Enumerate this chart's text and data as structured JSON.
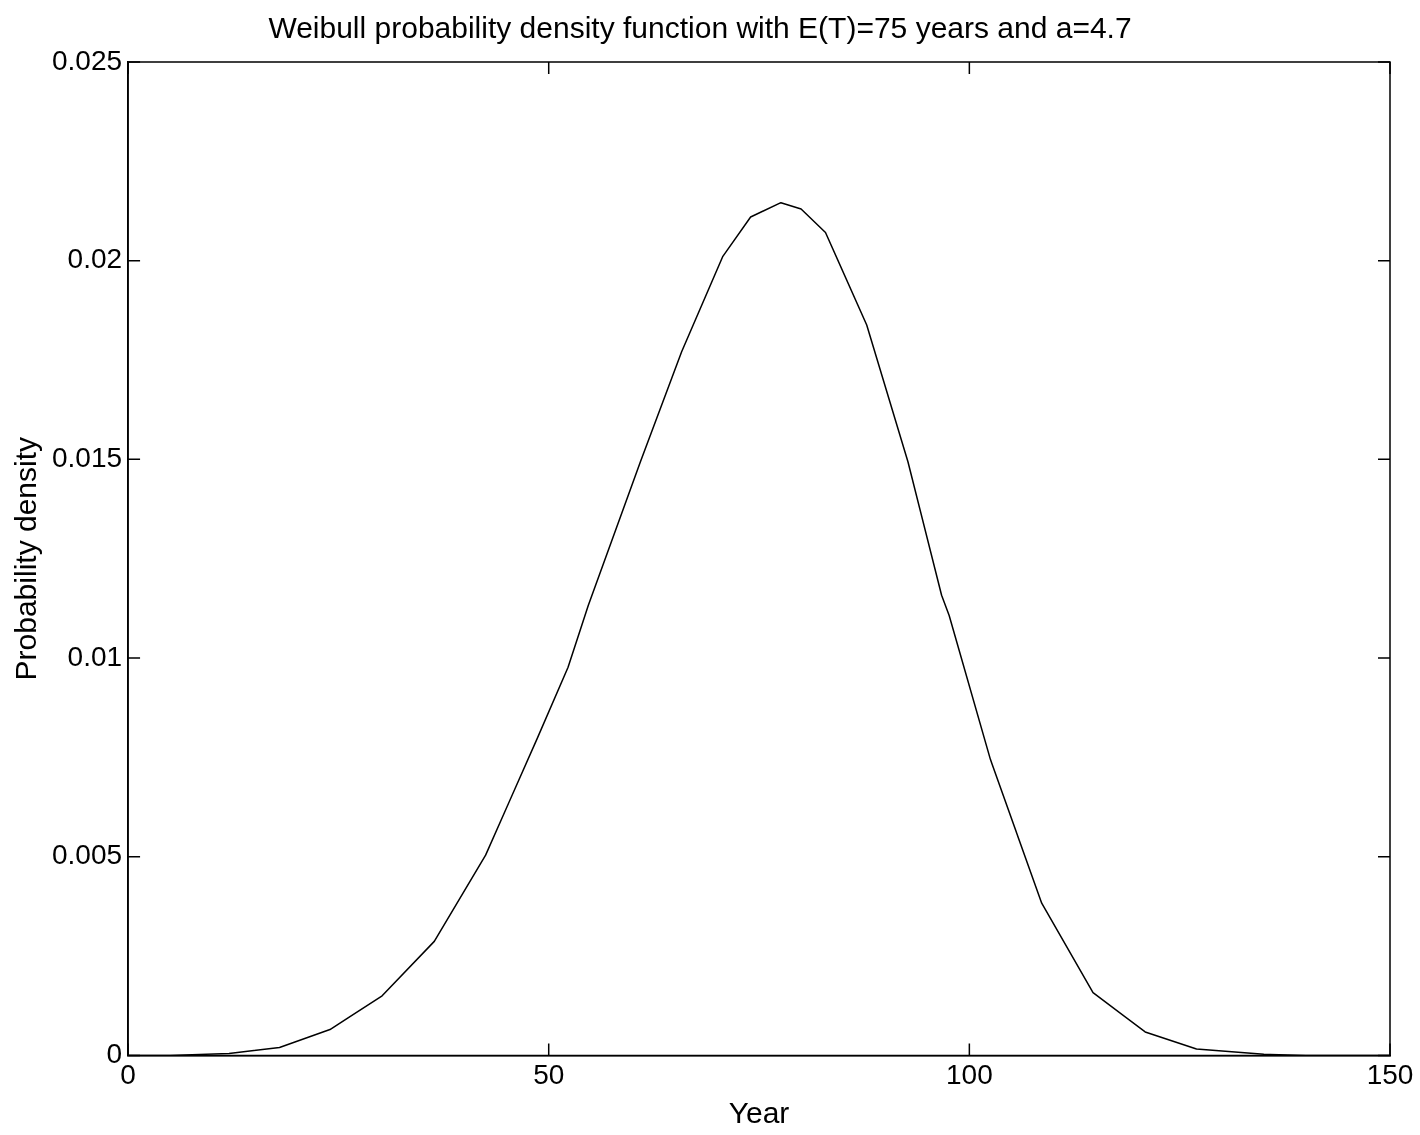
{
  "chart_data": {
    "type": "line",
    "title": "Weibull probability density function with E(T)=75 years and a=4.7",
    "xlabel": "Year",
    "ylabel": "Probability density",
    "x": [
      0,
      5,
      12,
      18,
      24,
      30.2,
      36.4,
      42.5,
      48.6,
      52.3,
      54.7,
      60.9,
      65.8,
      70.7,
      74,
      77.6,
      80,
      82.9,
      87.8,
      92.7,
      96.7,
      97.6,
      102.5,
      108.6,
      114.7,
      120.9,
      127,
      135,
      140,
      150
    ],
    "series": [
      {
        "color": "#000000",
        "values": [
          0,
          0,
          5e-05,
          0.0002,
          0.00065,
          0.0015,
          0.00287,
          0.00504,
          0.00796,
          0.00977,
          0.01132,
          0.01494,
          0.01771,
          0.02011,
          0.0211,
          0.02146,
          0.0213,
          0.02071,
          0.01838,
          0.01494,
          0.01158,
          0.01107,
          0.00745,
          0.00383,
          0.00158,
          0.00059,
          0.00016,
          3e-05,
          0,
          0
        ]
      }
    ],
    "xlim": [
      0,
      150
    ],
    "xticks": [
      0,
      50,
      100,
      150
    ],
    "ylim": [
      0,
      0.025
    ],
    "yticks": [
      0,
      0.005,
      0.01,
      0.015,
      0.02,
      0.025
    ],
    "grid": false,
    "legend": false,
    "marker": "none",
    "line_style": "solid"
  }
}
